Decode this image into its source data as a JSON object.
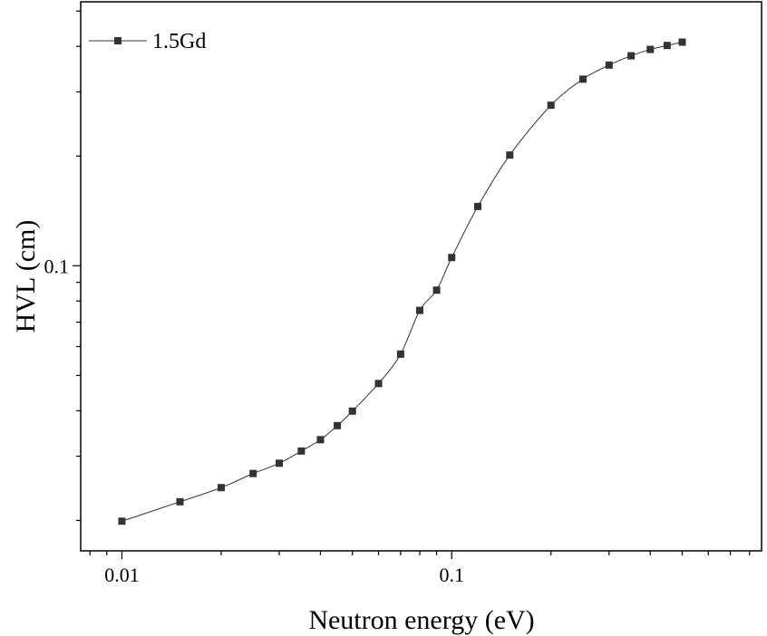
{
  "chart_data": {
    "type": "line",
    "xscale": "log",
    "yscale": "log",
    "xlabel": "Neutron energy (eV)",
    "ylabel": "HVL (cm)",
    "xlim": [
      0.0075,
      0.87
    ],
    "ylim": [
      0.0165,
      0.53
    ],
    "x_ticks": [
      {
        "value": 0.01,
        "label": "0.01"
      },
      {
        "value": 0.1,
        "label": "0.1"
      }
    ],
    "y_ticks": [
      {
        "value": 0.1,
        "label": "0.1"
      }
    ],
    "grid": false,
    "legend": {
      "position": "top-left"
    },
    "series": [
      {
        "name": "1.5Gd",
        "color": "#333333",
        "marker": "square",
        "x": [
          0.01,
          0.015,
          0.02,
          0.025,
          0.03,
          0.035,
          0.04,
          0.045,
          0.05,
          0.06,
          0.07,
          0.08,
          0.09,
          0.1,
          0.12,
          0.15,
          0.2,
          0.25,
          0.3,
          0.35,
          0.4,
          0.45,
          0.5
        ],
        "y": [
          0.0199,
          0.0225,
          0.0246,
          0.0269,
          0.0287,
          0.031,
          0.0333,
          0.0364,
          0.0399,
          0.0475,
          0.0572,
          0.0754,
          0.0857,
          0.1053,
          0.1454,
          0.2012,
          0.2757,
          0.3251,
          0.3553,
          0.3768,
          0.3923,
          0.4022,
          0.4108
        ]
      }
    ]
  }
}
